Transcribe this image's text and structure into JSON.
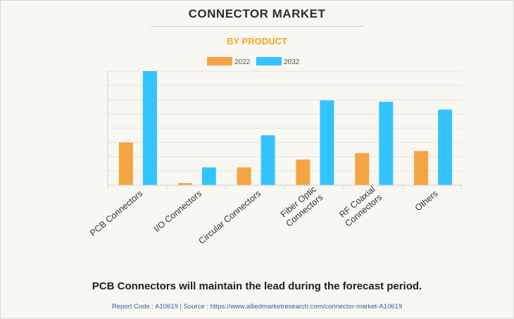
{
  "title": "CONNECTOR MARKET",
  "subtitle": "BY PRODUCT",
  "footer_text": "PCB Connectors will maintain the lead during the forecast period.",
  "source_line": "Report Code : A10619  |  Source : https://www.alliedmarketresearch.com/connector-market-A10619",
  "colors": {
    "series_2022": "#f5a443",
    "series_2032": "#33c4ff",
    "title": "#2e2e2e",
    "subtitle": "#f5a623"
  },
  "chart_data": {
    "type": "bar",
    "categories": [
      [
        "PCB Connectors"
      ],
      [
        "I/O Connectors"
      ],
      [
        "Circular Connectors"
      ],
      [
        "Fiber Optic",
        "Connectors"
      ],
      [
        "RF Coaxial",
        "Connectors"
      ],
      [
        "Others"
      ]
    ],
    "series": [
      {
        "name": "2022",
        "values": [
          30,
          1.5,
          12.5,
          18,
          22.5,
          24
        ]
      },
      {
        "name": "2032",
        "values": [
          80,
          12.5,
          35,
          59.5,
          58.5,
          53
        ]
      }
    ],
    "ylim": [
      0,
      80
    ],
    "grid": true,
    "legend_position": "top-center",
    "xlabel": "",
    "ylabel": ""
  }
}
